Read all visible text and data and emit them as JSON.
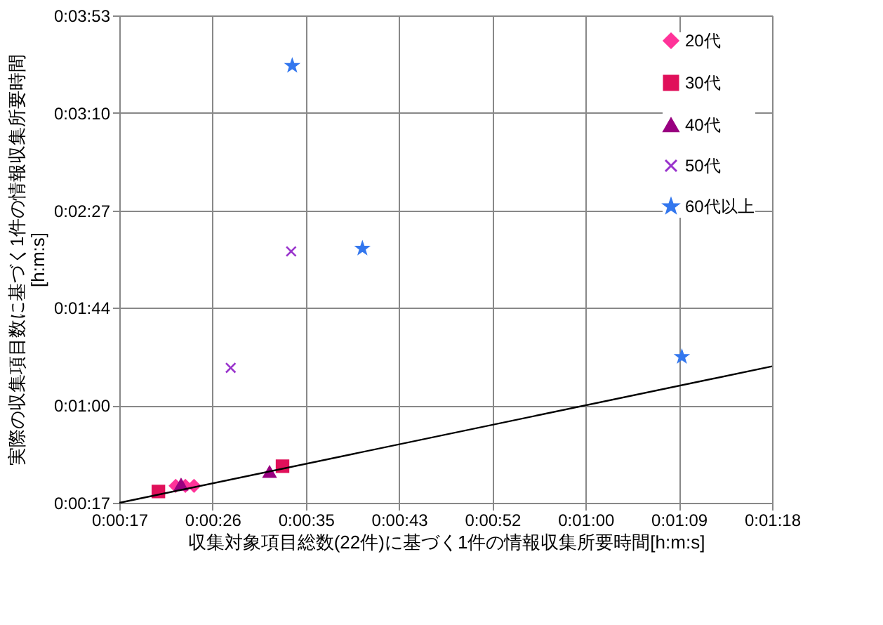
{
  "chart_data": {
    "type": "scatter",
    "xlabel": "収集対象項目総数(22件)に基づく1件の情報収集所要時間[h:m:s]",
    "ylabel": "実際の収集項目数に基づく1件の情報収集所要時間\n[h:m:s]",
    "xlim": [
      17.28,
      77.76
    ],
    "xticks": [
      {
        "value": 17.28,
        "label": "0:00:17"
      },
      {
        "value": 25.92,
        "label": "0:00:26"
      },
      {
        "value": 34.56,
        "label": "0:00:35"
      },
      {
        "value": 43.2,
        "label": "0:00:43"
      },
      {
        "value": 51.84,
        "label": "0:00:52"
      },
      {
        "value": 60.48,
        "label": "0:01:00"
      },
      {
        "value": 69.12,
        "label": "0:01:09"
      },
      {
        "value": 77.76,
        "label": "0:01:18"
      }
    ],
    "ylim": [
      17.28,
      233.28
    ],
    "yticks": [
      {
        "value": 17.28,
        "label": "0:00:17"
      },
      {
        "value": 60.48,
        "label": "0:01:00"
      },
      {
        "value": 103.68,
        "label": "0:01:44"
      },
      {
        "value": 146.88,
        "label": "0:02:27"
      },
      {
        "value": 190.08,
        "label": "0:03:10"
      },
      {
        "value": 233.28,
        "label": "0:03:53"
      }
    ],
    "grid": true,
    "legend": "top right",
    "series": [
      {
        "name": "20代",
        "color": "#ff3399",
        "marker": "diamond",
        "x": [
          22.5,
          23.4,
          24.2
        ],
        "values": [
          24.8,
          24.8,
          24.8
        ]
      },
      {
        "name": "30代",
        "color": "#e0105a",
        "marker": "square",
        "x": [
          20.9,
          32.4
        ],
        "values": [
          22.3,
          33.5
        ]
      },
      {
        "name": "40代",
        "color": "#990080",
        "marker": "triangle",
        "x": [
          23.0,
          31.2
        ],
        "values": [
          25.4,
          31.0
        ]
      },
      {
        "name": "50代",
        "color": "#9933cc",
        "marker": "cross",
        "x": [
          27.6,
          33.2
        ],
        "values": [
          77.1,
          128.7
        ]
      },
      {
        "name": "60代以上",
        "color": "#3377ee",
        "marker": "star",
        "x": [
          33.3,
          39.8,
          69.4
        ],
        "values": [
          211.0,
          130.0,
          82.0
        ]
      },
      {
        "type": "line",
        "color": "#000000",
        "x": [
          17.28,
          77.76
        ],
        "values": [
          17.28,
          77.76
        ]
      }
    ]
  }
}
